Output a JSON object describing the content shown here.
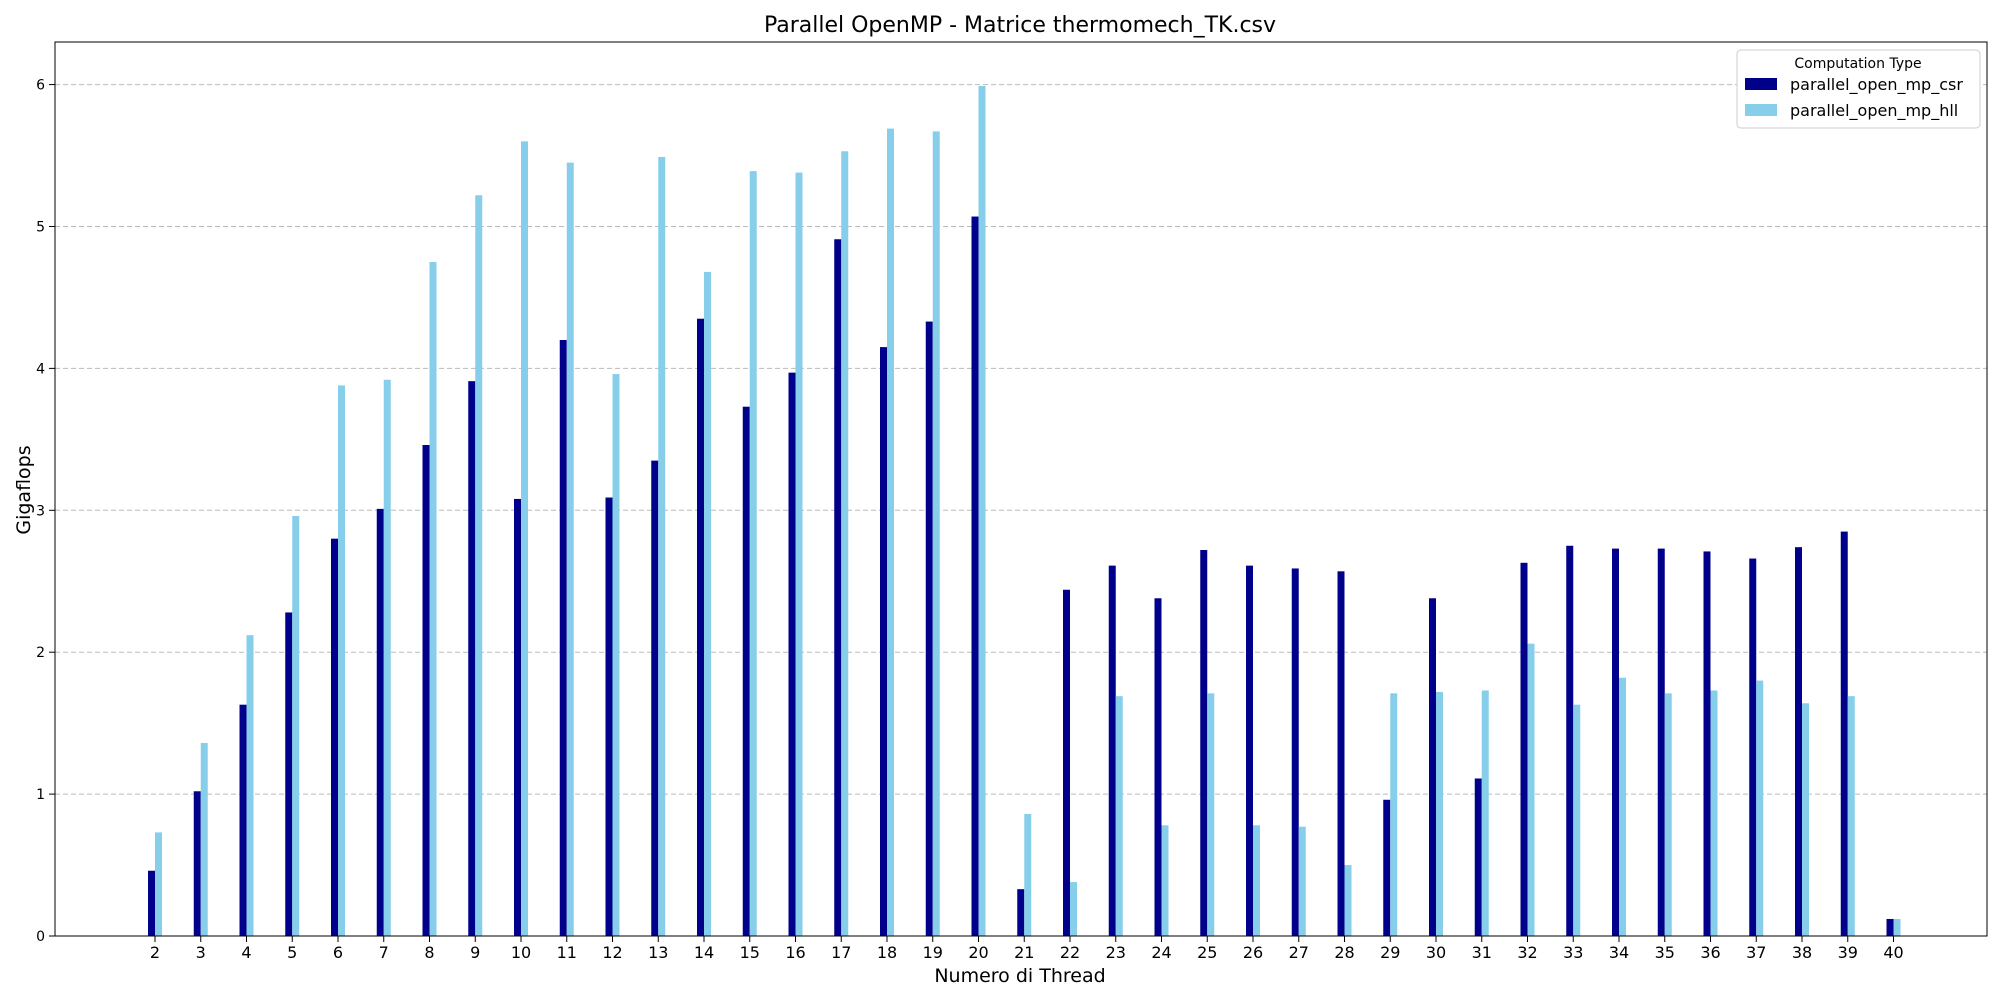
{
  "chart_data": {
    "type": "bar",
    "title": "Parallel OpenMP - Matrice thermomech_TK.csv",
    "xlabel": "Numero di Thread",
    "ylabel": "Gigaflops",
    "ylim": [
      0,
      6.3
    ],
    "yticks": [
      "0",
      "1",
      "2",
      "3",
      "4",
      "5",
      "6"
    ],
    "grid": "horizontal dashed",
    "categories": [
      "2",
      "3",
      "4",
      "5",
      "6",
      "7",
      "8",
      "9",
      "10",
      "11",
      "12",
      "13",
      "14",
      "15",
      "16",
      "17",
      "18",
      "19",
      "20",
      "21",
      "22",
      "23",
      "24",
      "25",
      "26",
      "27",
      "28",
      "29",
      "30",
      "31",
      "32",
      "33",
      "34",
      "35",
      "36",
      "37",
      "38",
      "39",
      "40"
    ],
    "legend": {
      "title": "Computation Type",
      "placement": "top-right"
    },
    "series": [
      {
        "name": "parallel_open_mp_csr",
        "color": "#00008b",
        "values": [
          0.46,
          1.02,
          1.63,
          2.28,
          2.8,
          3.01,
          3.46,
          3.91,
          3.08,
          4.2,
          3.09,
          3.35,
          4.35,
          3.73,
          3.97,
          4.91,
          4.15,
          4.33,
          5.07,
          0.33,
          2.44,
          2.61,
          2.38,
          2.72,
          2.61,
          2.59,
          2.57,
          0.96,
          2.38,
          1.11,
          2.63,
          2.75,
          2.73,
          2.73,
          2.71,
          2.66,
          2.74,
          2.85,
          0.12
        ]
      },
      {
        "name": "parallel_open_mp_hll",
        "color": "#87ceeb",
        "values": [
          0.73,
          1.36,
          2.12,
          2.96,
          3.88,
          3.92,
          4.75,
          5.22,
          5.6,
          5.45,
          3.96,
          5.49,
          4.68,
          5.39,
          5.38,
          5.53,
          5.69,
          5.67,
          5.99,
          0.86,
          0.38,
          1.69,
          0.78,
          1.71,
          0.78,
          0.77,
          0.5,
          1.71,
          1.72,
          1.73,
          2.06,
          1.63,
          1.82,
          1.71,
          1.73,
          1.8,
          1.64,
          1.69,
          0.12
        ]
      }
    ]
  }
}
